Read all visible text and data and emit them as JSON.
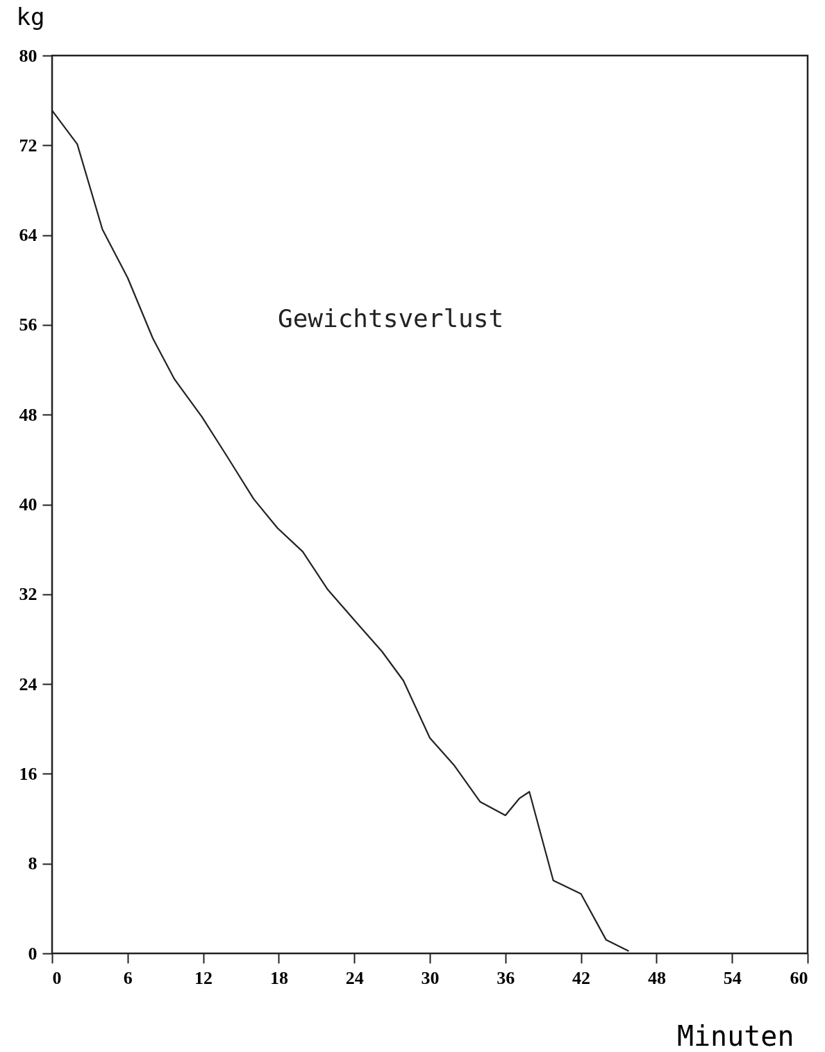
{
  "chart_data": {
    "type": "line",
    "xlabel": "Minuten",
    "ylabel": "kg",
    "x": [
      0,
      1,
      2,
      4,
      6,
      8,
      9.7,
      11.9,
      14,
      16,
      17.9,
      19.9,
      21.9,
      24,
      26.2,
      27.9,
      30,
      31.9,
      34,
      36,
      37.1,
      37.9,
      39.8,
      42,
      44,
      45.8
    ],
    "series": [
      {
        "name": "Gewichtsverlust",
        "color": "#222222",
        "values": [
          75.1,
          73.6,
          72.1,
          64.5,
          60.2,
          54.8,
          51.2,
          47.8,
          44.1,
          40.5,
          37.9,
          35.8,
          32.4,
          29.7,
          26.9,
          24.3,
          19.2,
          16.8,
          13.5,
          12.3,
          13.8,
          14.4,
          6.5,
          5.3,
          1.2,
          0.2
        ]
      }
    ],
    "xlim": [
      0,
      60
    ],
    "xticks": [
      0,
      6,
      12,
      18,
      24,
      30,
      36,
      42,
      48,
      54,
      60
    ],
    "ylim": [
      0,
      80
    ],
    "yticks": [
      0,
      8,
      16,
      24,
      32,
      40,
      48,
      56,
      64,
      72,
      80
    ],
    "grid": false,
    "marker": "none",
    "line_style": "solid"
  }
}
